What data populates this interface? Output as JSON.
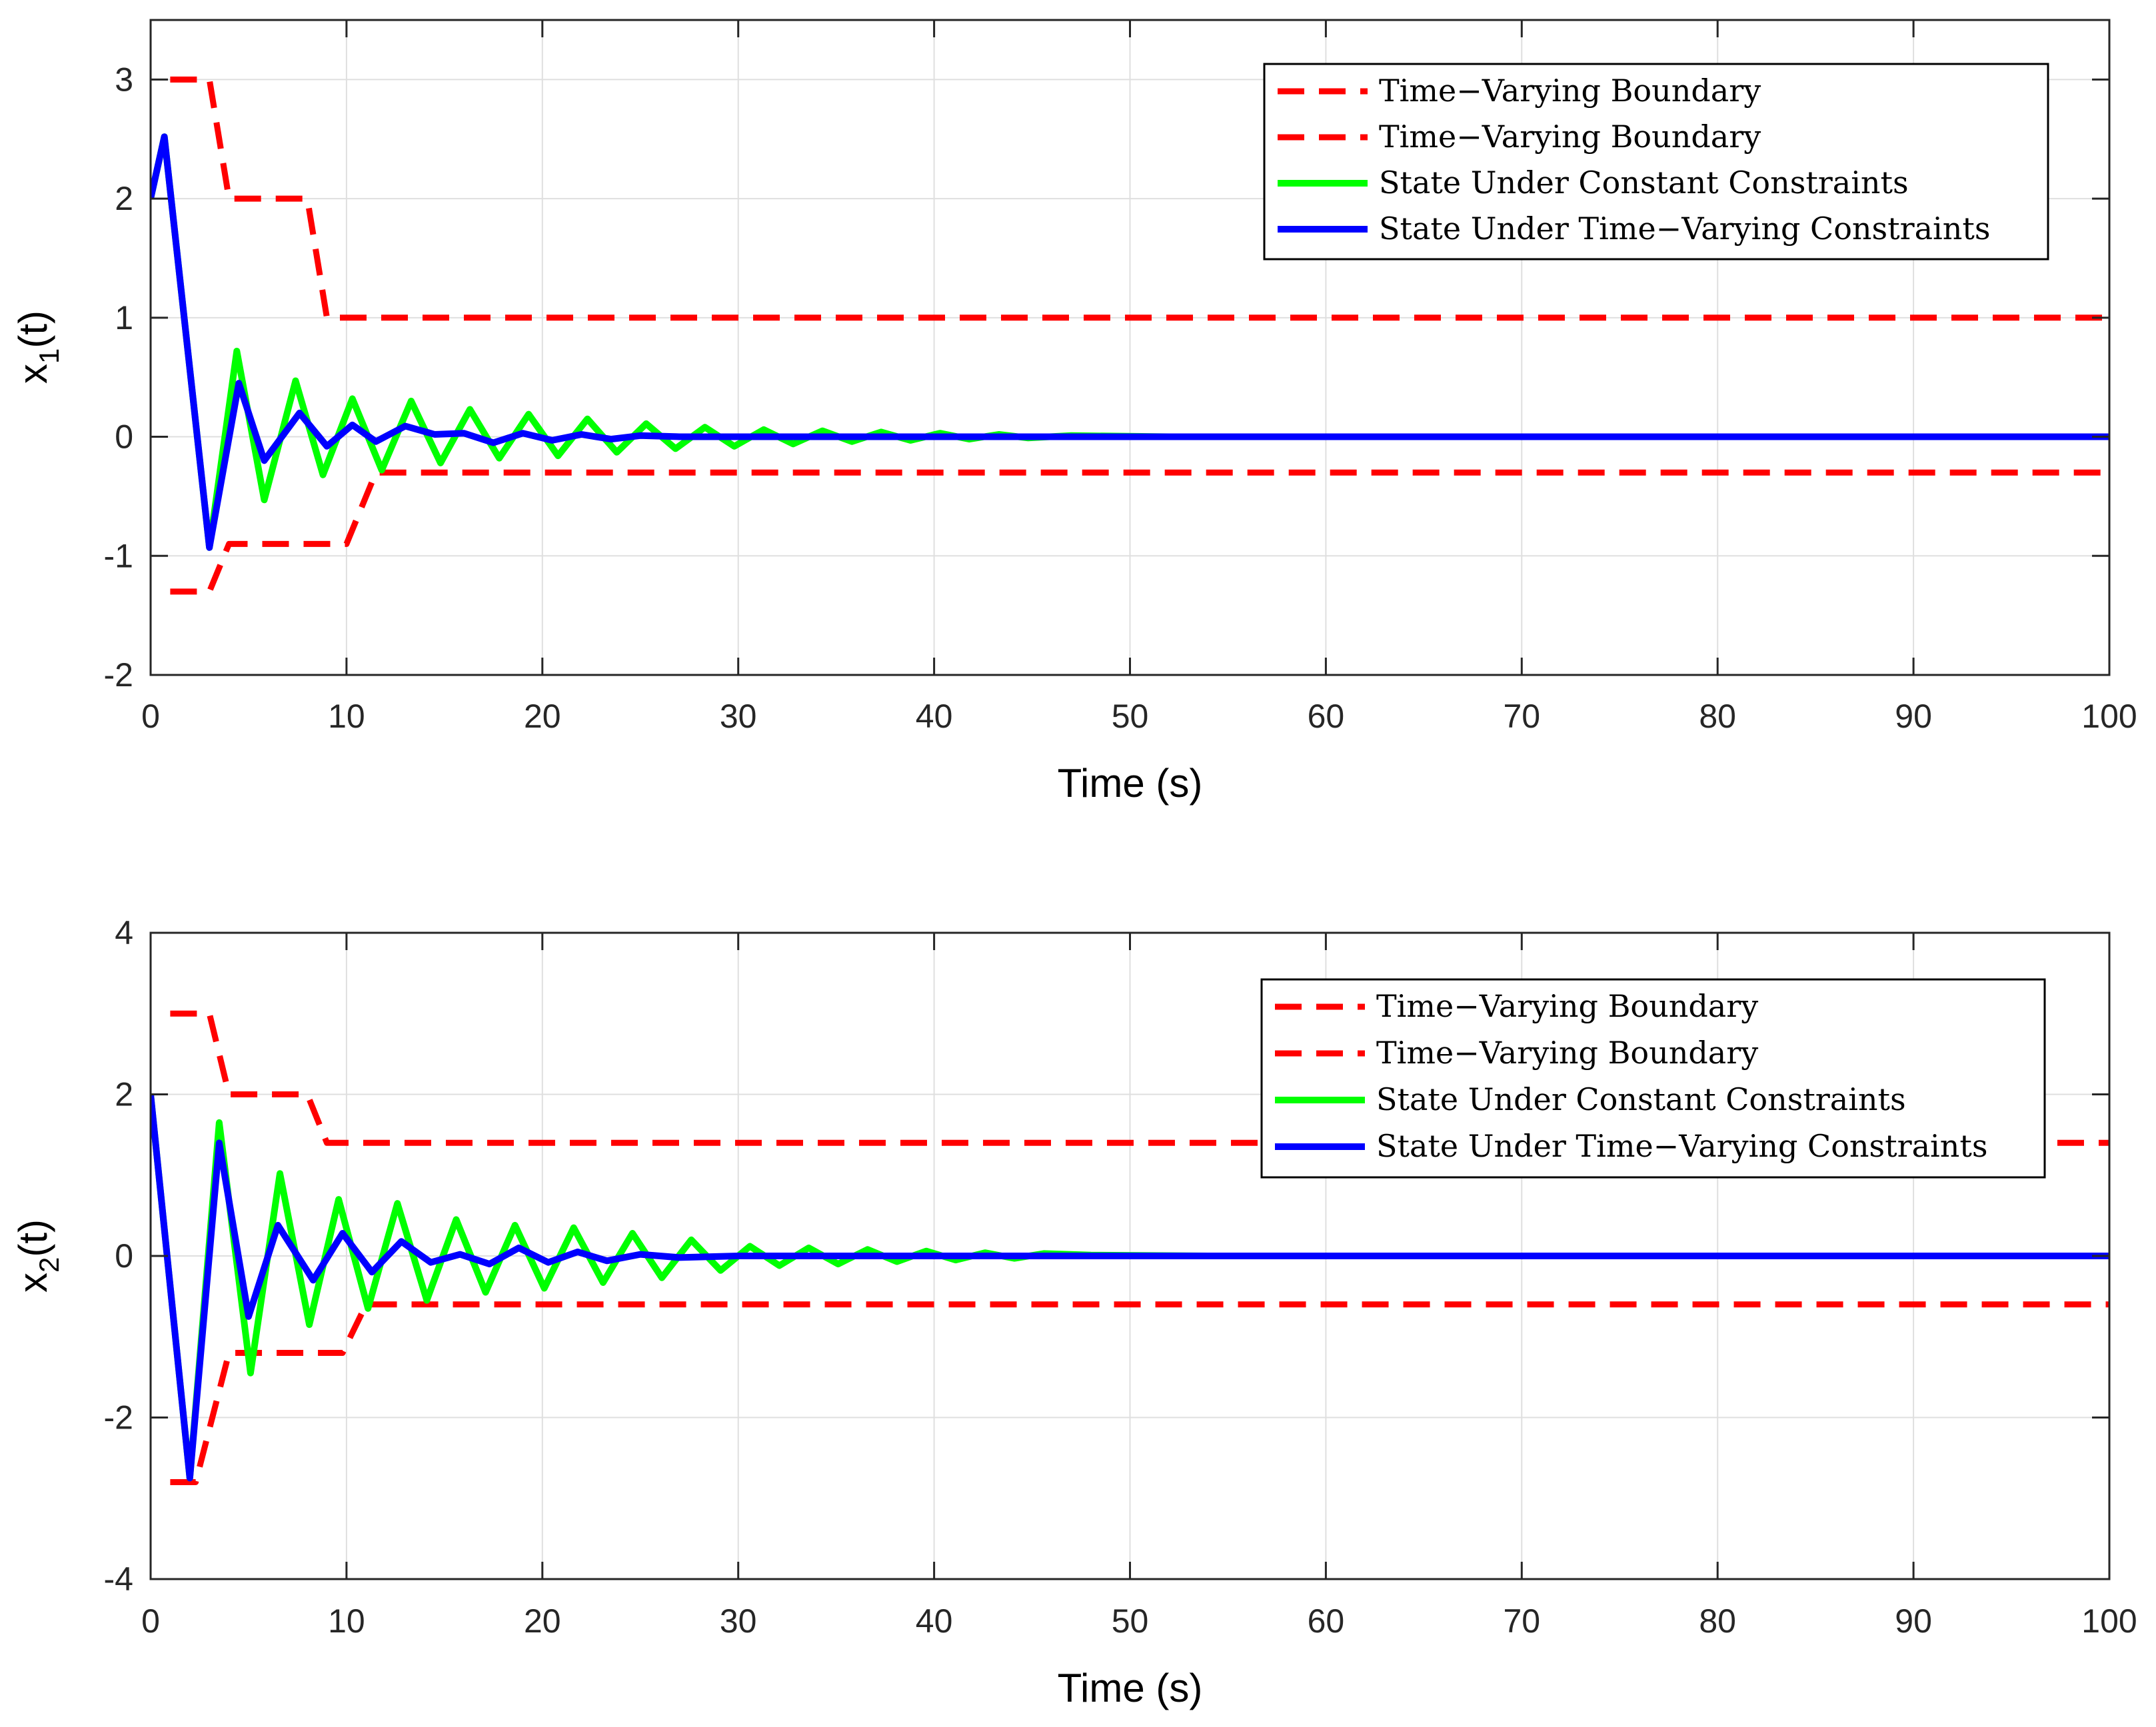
{
  "colors": {
    "boundary": "#ff0000",
    "constant": "#00ff00",
    "time_varying": "#0000ff",
    "grid": "#dfdfdf",
    "axis": "#262626"
  },
  "chart_data": [
    {
      "type": "line",
      "xlabel": "Time (s)",
      "ylabel": "x",
      "ylabel_sub": "1",
      "ylabel_suffix": "(t)",
      "xlim": [
        0,
        100
      ],
      "ylim": [
        -2,
        3.5
      ],
      "xticks": [
        0,
        10,
        20,
        30,
        40,
        50,
        60,
        70,
        80,
        90,
        100
      ],
      "xtick_labels": [
        "0",
        "10",
        "20",
        "30",
        "40",
        "50",
        "60",
        "70",
        "80",
        "90",
        "100"
      ],
      "yticks": [
        -2,
        -1,
        0,
        1,
        2,
        3
      ],
      "ytick_labels": [
        "-2",
        "-1",
        "0",
        "1",
        "2",
        "3"
      ],
      "grid": true,
      "legend_position": "top-right",
      "series": [
        {
          "name": "Time−Varying Boundary",
          "style": "dashed",
          "color": "#ff0000",
          "x": [
            1,
            3,
            4,
            8,
            9,
            100
          ],
          "y": [
            3,
            3,
            2,
            2,
            1,
            1
          ]
        },
        {
          "name": "Time−Varying Boundary",
          "style": "dashed",
          "color": "#ff0000",
          "x": [
            1,
            3,
            4,
            10,
            11.5,
            100
          ],
          "y": [
            -1.3,
            -1.3,
            -0.9,
            -0.9,
            -0.3,
            -0.3
          ]
        },
        {
          "name": "State Under Constant Constraints",
          "style": "solid",
          "color": "#00ff00",
          "x": [
            0,
            0.7,
            3,
            4.4,
            5.8,
            7.4,
            8.8,
            10.3,
            11.8,
            13.3,
            14.8,
            16.3,
            17.8,
            19.3,
            20.8,
            22.3,
            23.8,
            25.3,
            26.8,
            28.3,
            29.8,
            31.3,
            32.8,
            34.3,
            35.8,
            37.3,
            38.8,
            40.3,
            41.8,
            43.3,
            44.8,
            47,
            52,
            100
          ],
          "y": [
            2,
            2.52,
            -0.93,
            0.72,
            -0.53,
            0.47,
            -0.32,
            0.32,
            -0.28,
            0.3,
            -0.22,
            0.23,
            -0.18,
            0.19,
            -0.16,
            0.15,
            -0.13,
            0.11,
            -0.1,
            0.08,
            -0.08,
            0.06,
            -0.06,
            0.05,
            -0.04,
            0.04,
            -0.03,
            0.03,
            -0.02,
            0.02,
            -0.01,
            0.01,
            0,
            0
          ]
        },
        {
          "name": "State Under Time−Varying Constraints",
          "style": "solid",
          "color": "#0000ff",
          "x": [
            0,
            0.7,
            3,
            4.5,
            5.8,
            7.6,
            9,
            10.3,
            11.5,
            13,
            14.5,
            16,
            17.5,
            19,
            20.5,
            22,
            23.5,
            25,
            27,
            30,
            100
          ],
          "y": [
            2,
            2.52,
            -0.93,
            0.45,
            -0.2,
            0.2,
            -0.08,
            0.1,
            -0.04,
            0.09,
            0.02,
            0.03,
            -0.05,
            0.03,
            -0.03,
            0.02,
            -0.02,
            0.01,
            0,
            0,
            0
          ]
        }
      ]
    },
    {
      "type": "line",
      "xlabel": "Time (s)",
      "ylabel": "x",
      "ylabel_sub": "2",
      "ylabel_suffix": "(t)",
      "xlim": [
        0,
        100
      ],
      "ylim": [
        -4,
        4
      ],
      "xticks": [
        0,
        10,
        20,
        30,
        40,
        50,
        60,
        70,
        80,
        90,
        100
      ],
      "xtick_labels": [
        "0",
        "10",
        "20",
        "30",
        "40",
        "50",
        "60",
        "70",
        "80",
        "90",
        "100"
      ],
      "yticks": [
        -4,
        -2,
        0,
        2,
        4
      ],
      "ytick_labels": [
        "-4",
        "-2",
        "0",
        "2",
        "4"
      ],
      "grid": true,
      "legend_position": "top-right",
      "series": [
        {
          "name": "Time−Varying Boundary",
          "style": "dashed",
          "color": "#ff0000",
          "x": [
            1,
            3,
            4,
            8,
            9,
            100
          ],
          "y": [
            3,
            3,
            2,
            2,
            1.4,
            1.4
          ]
        },
        {
          "name": "Time−Varying Boundary",
          "style": "dashed",
          "color": "#ff0000",
          "x": [
            1,
            2.3,
            4,
            9.8,
            11,
            100
          ],
          "y": [
            -2.8,
            -2.8,
            -1.2,
            -1.2,
            -0.6,
            -0.6
          ]
        },
        {
          "name": "State Under Constant Constraints",
          "style": "solid",
          "color": "#00ff00",
          "x": [
            0,
            2,
            3.5,
            5.1,
            6.6,
            8.1,
            9.6,
            11.1,
            12.6,
            14.1,
            15.6,
            17.1,
            18.6,
            20.1,
            21.6,
            23.1,
            24.6,
            26.1,
            27.6,
            29.1,
            30.6,
            32.1,
            33.6,
            35.1,
            36.6,
            38.1,
            39.6,
            41.1,
            42.6,
            44.1,
            45.6,
            48,
            54,
            100
          ],
          "y": [
            2,
            -2.75,
            1.65,
            -1.45,
            1.02,
            -0.85,
            0.7,
            -0.65,
            0.65,
            -0.55,
            0.45,
            -0.45,
            0.38,
            -0.4,
            0.35,
            -0.33,
            0.28,
            -0.27,
            0.2,
            -0.18,
            0.12,
            -0.12,
            0.1,
            -0.1,
            0.08,
            -0.07,
            0.06,
            -0.05,
            0.04,
            -0.03,
            0.03,
            0.01,
            0,
            0
          ]
        },
        {
          "name": "State Under Time−Varying Constraints",
          "style": "solid",
          "color": "#0000ff",
          "x": [
            0,
            2,
            3.5,
            5,
            6.5,
            8.3,
            9.8,
            11.3,
            12.8,
            14.3,
            15.8,
            17.3,
            18.8,
            20.3,
            21.8,
            23.3,
            25,
            27,
            30,
            100
          ],
          "y": [
            2,
            -2.75,
            1.4,
            -0.75,
            0.38,
            -0.3,
            0.28,
            -0.2,
            0.18,
            -0.08,
            0.02,
            -0.1,
            0.1,
            -0.08,
            0.05,
            -0.06,
            0.02,
            -0.02,
            0,
            0
          ]
        }
      ]
    }
  ]
}
